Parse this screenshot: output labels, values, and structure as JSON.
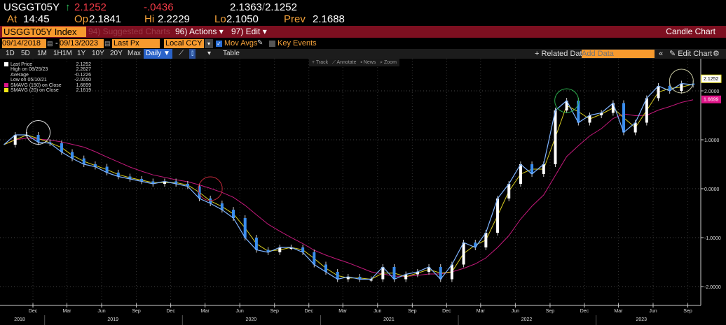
{
  "header": {
    "ticker": "USGGT05Y",
    "last": "2.1252",
    "change": "-.0436",
    "bid_ask": "2.1363",
    "bid_ask2": "2.1252",
    "at_label": "At",
    "time": "14:45",
    "op_label": "Op",
    "open": "2.1841",
    "hi_label": "Hi",
    "high": "2.2229",
    "lo_label": "Lo",
    "low": "2.1050",
    "prev_label": "Prev",
    "prev": "2.1688",
    "up_icon": "arrow-up-icon"
  },
  "menubar": {
    "security": "USGGT05Y Index",
    "suggested": "94) Suggested Charts",
    "actions": "96) Actions ▾",
    "edit": "97) Edit ▾",
    "title": "Candle Chart"
  },
  "controls": {
    "start_date": "09/14/2018",
    "end_date": "09/13/2023",
    "dash": "-",
    "field": "Last Px",
    "currency": "Local CCY",
    "mov_avgs": "Mov Avgs",
    "mov_avgs_checked": true,
    "key_events": "Key Events",
    "key_events_checked": false
  },
  "periods": [
    "1D",
    "5D",
    "1M",
    "1H1M",
    "1Y",
    "10Y",
    "20Y",
    "Max"
  ],
  "frequency": "Daily ▼",
  "table_label": "Table",
  "related": "+ Related Dat",
  "add_data_placeholder": "Add Data",
  "edit_chart": "Edit Chart",
  "tools": [
    "Track",
    "Annotate",
    "News",
    "Zoom"
  ],
  "legend": [
    {
      "label": "Last Price",
      "value": "2.1252",
      "color": "#ffffff"
    },
    {
      "label": "High on 08/25/23",
      "value": "2.2627"
    },
    {
      "label": "Average",
      "value": "-0.1226"
    },
    {
      "label": "Low on 05/10/21",
      "value": "-2.0050"
    },
    {
      "label": "SMAVG (150)  on Close",
      "value": "1.6699",
      "color": "#e0158a"
    },
    {
      "label": "SMAVG (20)  on Close",
      "value": "2.1619",
      "color": "#f2e617"
    }
  ],
  "chart_data": {
    "type": "line",
    "candle_colors": {
      "up": "#ffffff",
      "down": "#3a8ef0"
    },
    "ylim": [
      -2.3,
      2.5
    ],
    "yticks": [
      "2.0000",
      "1.0000",
      "0.0000",
      "-1.0000",
      "-2.0000"
    ],
    "xlim": [
      "2018-09-14",
      "2023-09-13"
    ],
    "month_ticks": [
      "Dec",
      "Mar",
      "Jun",
      "Sep",
      "Dec",
      "Mar",
      "Jun",
      "Sep",
      "Dec",
      "Mar",
      "Jun",
      "Sep",
      "Dec",
      "Mar",
      "Jun",
      "Sep",
      "Dec",
      "Mar",
      "Jun",
      "Sep"
    ],
    "year_labels": [
      "2018",
      "2019",
      "2020",
      "2021",
      "2022",
      "2023"
    ],
    "last_label": "2.1252",
    "sma150_label": "1.6699",
    "sma150_color": "#c2197a",
    "sma20_color": "#d8cc20",
    "x": [
      "2018-09",
      "2018-10",
      "2018-11",
      "2018-12",
      "2019-01",
      "2019-02",
      "2019-03",
      "2019-04",
      "2019-05",
      "2019-06",
      "2019-07",
      "2019-08",
      "2019-09",
      "2019-10",
      "2019-11",
      "2019-12",
      "2020-01",
      "2020-02",
      "2020-03",
      "2020-04",
      "2020-05",
      "2020-06",
      "2020-07",
      "2020-08",
      "2020-09",
      "2020-10",
      "2020-11",
      "2020-12",
      "2021-01",
      "2021-02",
      "2021-03",
      "2021-04",
      "2021-05",
      "2021-06",
      "2021-07",
      "2021-08",
      "2021-09",
      "2021-10",
      "2021-11",
      "2021-12",
      "2022-01",
      "2022-02",
      "2022-03",
      "2022-04",
      "2022-05",
      "2022-06",
      "2022-07",
      "2022-08",
      "2022-09",
      "2022-10",
      "2022-11",
      "2022-12",
      "2023-01",
      "2023-02",
      "2023-03",
      "2023-04",
      "2023-05",
      "2023-06",
      "2023-07",
      "2023-08",
      "2023-09"
    ],
    "values": [
      0.9,
      1.1,
      1.1,
      0.95,
      0.93,
      0.75,
      0.62,
      0.5,
      0.45,
      0.33,
      0.25,
      0.2,
      0.15,
      0.1,
      0.15,
      0.1,
      0.05,
      -0.2,
      -0.3,
      -0.43,
      -0.6,
      -1.0,
      -1.25,
      -1.3,
      -1.2,
      -1.2,
      -1.3,
      -1.55,
      -1.7,
      -1.85,
      -1.8,
      -1.85,
      -1.85,
      -1.6,
      -1.85,
      -1.75,
      -1.7,
      -1.6,
      -1.85,
      -1.55,
      -1.1,
      -1.2,
      -0.9,
      -0.2,
      0.1,
      0.5,
      0.3,
      0.5,
      1.6,
      1.8,
      1.35,
      1.5,
      1.55,
      1.75,
      1.15,
      1.35,
      1.85,
      2.1,
      2.0,
      2.15,
      2.1252
    ],
    "annotations": [
      {
        "date": "2018-12",
        "value": 1.15,
        "color": "#dddddd"
      },
      {
        "date": "2020-03",
        "value": 0.0,
        "color": "#c0283a"
      },
      {
        "date": "2022-10",
        "value": 1.8,
        "color": "#2aa84a"
      },
      {
        "date": "2023-08",
        "value": 2.2,
        "color": "#bfbf9a"
      }
    ]
  }
}
